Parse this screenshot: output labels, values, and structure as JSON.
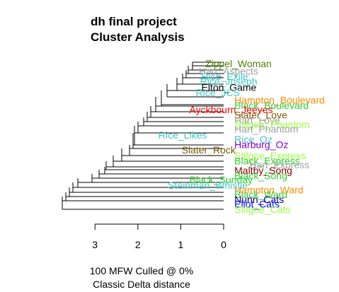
{
  "chart_data": {
    "type": "dendrogram",
    "title_lines": [
      "dh final project",
      "Cluster Analysis"
    ],
    "caption_lines": [
      "100 MFW  Culled @ 0%",
      "Classic Delta distance"
    ],
    "x_ticks": [
      3,
      2,
      1,
      0
    ],
    "xlim": [
      3.0,
      0.0
    ],
    "leaves": [
      {
        "name": "Zippel_Woman",
        "color": "#4f7f00",
        "x": 0.43,
        "y": 0.0
      },
      {
        "name": "Hart_Aspects",
        "color": "#a0a0a0",
        "x": 0.58,
        "y": 1.0
      },
      {
        "name": "Rice_Exile",
        "color": "#40c8c8",
        "x": 0.52,
        "y": 1.7
      },
      {
        "name": "Rice_Joseph",
        "color": "#40c8c8",
        "x": 0.55,
        "y": 2.4
      },
      {
        "name": "Elton_Game",
        "color": "#000000",
        "x": 0.52,
        "y": 3.2
      },
      {
        "name": "Rice_JCS",
        "color": "#40c8c8",
        "x": 0.65,
        "y": 3.9
      },
      {
        "name": "Hampton_Boulevard",
        "color": "#ff8c00",
        "x": -0.25,
        "y": 4.9
      },
      {
        "name": "Black_Boulevard",
        "color": "#32cd32",
        "x": -0.25,
        "y": 5.6
      },
      {
        "name": "Ayckbourn_Jeeves",
        "color": "#ff0000",
        "x": 0.8,
        "y": 6.2
      },
      {
        "name": "Slater_Love",
        "color": "#7a5a00",
        "x": -0.25,
        "y": 6.9
      },
      {
        "name": "Hart_Love",
        "color": "#a0a0a0",
        "x": -0.25,
        "y": 7.6
      },
      {
        "name": "Stilgoe_Phantom",
        "color": "#9aff3c",
        "x": -0.25,
        "y": 8.2
      },
      {
        "name": "Hart_Phantom",
        "color": "#a0a0a0",
        "x": -0.25,
        "y": 8.8
      },
      {
        "name": "Rice_Likes",
        "color": "#40c8c8",
        "x": 1.52,
        "y": 9.6
      },
      {
        "name": "Rice_Oz",
        "color": "#40c8c8",
        "x": -0.25,
        "y": 10.2
      },
      {
        "name": "Harburg_Oz",
        "color": "#8a00c8",
        "x": -0.25,
        "y": 10.9
      },
      {
        "name": "Slater_Rock",
        "color": "#7a5a00",
        "x": 0.98,
        "y": 11.6
      },
      {
        "name": "Stilgoe_Express",
        "color": "#9aff3c",
        "x": -0.25,
        "y": 12.4
      },
      {
        "name": "Black_Express",
        "color": "#32cd32",
        "x": -0.25,
        "y": 13.1
      },
      {
        "name": "Hart_Express",
        "color": "#a0a0a0",
        "x": -0.6,
        "y": 13.6
      },
      {
        "name": "Maltby_Song",
        "color": "#8b0000",
        "x": -0.25,
        "y": 14.4
      },
      {
        "name": "Black_Song",
        "color": "#32cd32",
        "x": -0.25,
        "y": 15.1
      },
      {
        "name": "Black_Sunday",
        "color": "#32cd32",
        "x": 0.8,
        "y": 15.6
      },
      {
        "name": "Steinman_Whistle",
        "color": "#40c8c8",
        "x": 1.3,
        "y": 16.4
      },
      {
        "name": "Hampton_Ward",
        "color": "#ff8c00",
        "x": -0.25,
        "y": 17.0
      },
      {
        "name": "Black_Ward",
        "color": "#32cd32",
        "x": -0.25,
        "y": 17.6
      },
      {
        "name": "Nunn_Cats",
        "color": "#000080",
        "x": -0.25,
        "y": 18.3
      },
      {
        "name": "Eliot_Cats",
        "color": "#0000ff",
        "x": -0.25,
        "y": 18.9
      },
      {
        "name": "Stilgoe_Cats",
        "color": "#9aff3c",
        "x": -0.25,
        "y": 19.6
      }
    ]
  }
}
